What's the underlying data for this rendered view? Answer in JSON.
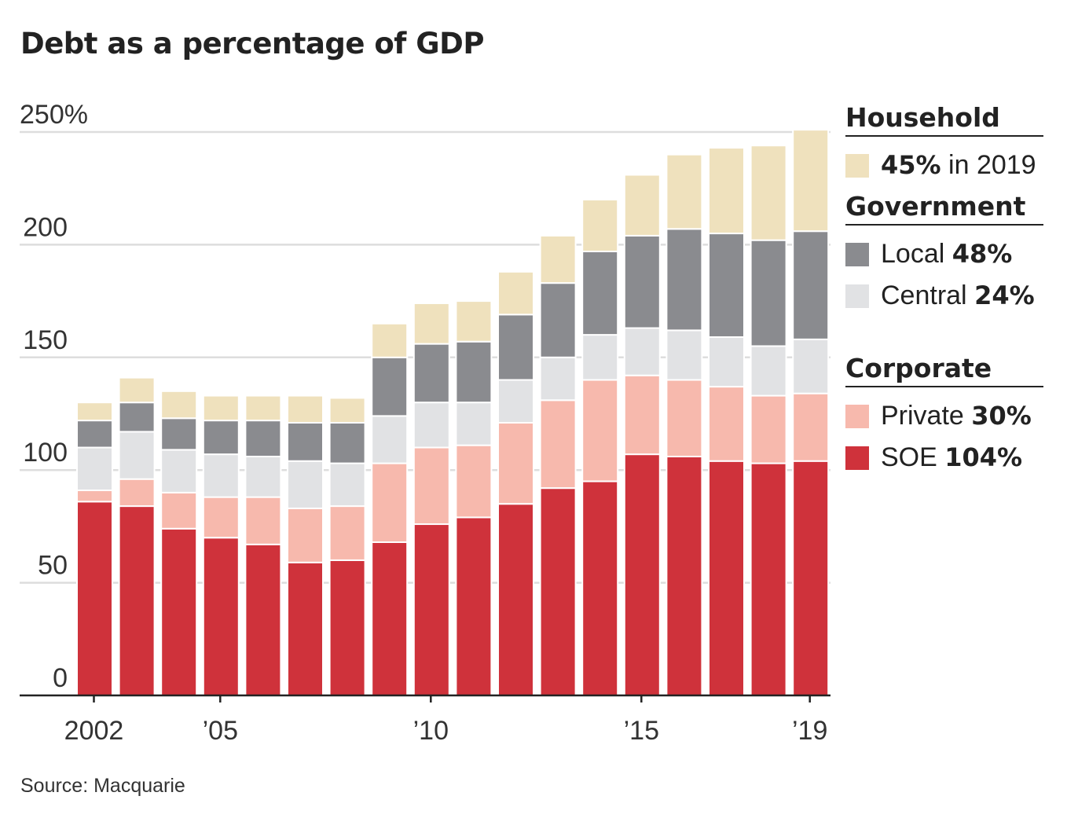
{
  "title": "Debt as a percentage of GDP",
  "source": "Source: Macquarie",
  "colors": {
    "soe": "#cf323b",
    "private": "#f7b9ad",
    "central": "#e1e2e4",
    "local": "#8a8b8f",
    "household": "#efe1bd",
    "grid": "#dddddd",
    "axis": "#222222"
  },
  "legend": {
    "groups": [
      {
        "title": "Household",
        "items": [
          {
            "key": "household",
            "label": "",
            "value": "45%",
            "suffix": " in 2019"
          }
        ]
      },
      {
        "title": "Government",
        "items": [
          {
            "key": "local",
            "label": "Local ",
            "value": "48%",
            "suffix": ""
          },
          {
            "key": "central",
            "label": "Central ",
            "value": "24%",
            "suffix": ""
          }
        ]
      },
      {
        "title": "Corporate",
        "items": [
          {
            "key": "private",
            "label": "Private ",
            "value": "30%",
            "suffix": ""
          },
          {
            "key": "soe",
            "label": "SOE ",
            "value": "104%",
            "suffix": ""
          }
        ]
      }
    ]
  },
  "chart_data": {
    "type": "bar",
    "stacked": true,
    "title": "Debt as a percentage of GDP",
    "xlabel": "",
    "ylabel": "",
    "ylim": [
      0,
      250
    ],
    "y_ticks": [
      0,
      50,
      100,
      150,
      200,
      250
    ],
    "y_tick_labels": [
      "0",
      "50",
      "100",
      "150",
      "200",
      "250%"
    ],
    "x_tick_labels": [
      {
        "year": 2002,
        "label": "2002"
      },
      {
        "year": 2005,
        "label": "’05"
      },
      {
        "year": 2010,
        "label": "’10"
      },
      {
        "year": 2015,
        "label": "’15"
      },
      {
        "year": 2019,
        "label": "’19"
      }
    ],
    "grid": true,
    "legend_position": "right",
    "categories": [
      2002,
      2003,
      2004,
      2005,
      2006,
      2007,
      2008,
      2009,
      2010,
      2011,
      2012,
      2013,
      2014,
      2015,
      2016,
      2017,
      2018,
      2019
    ],
    "series": [
      {
        "key": "soe",
        "name": "SOE",
        "group": "Corporate",
        "values": [
          86,
          84,
          74,
          70,
          67,
          59,
          60,
          68,
          76,
          79,
          85,
          92,
          95,
          107,
          106,
          104,
          103,
          104
        ]
      },
      {
        "key": "private",
        "name": "Private",
        "group": "Corporate",
        "values": [
          5,
          12,
          16,
          18,
          21,
          24,
          24,
          35,
          34,
          32,
          36,
          39,
          45,
          35,
          34,
          33,
          30,
          30
        ]
      },
      {
        "key": "central",
        "name": "Central",
        "group": "Government",
        "values": [
          19,
          21,
          19,
          19,
          18,
          21,
          19,
          21,
          20,
          19,
          19,
          19,
          20,
          21,
          22,
          22,
          22,
          24
        ]
      },
      {
        "key": "local",
        "name": "Local",
        "group": "Government",
        "values": [
          12,
          13,
          14,
          15,
          16,
          17,
          18,
          26,
          26,
          27,
          29,
          33,
          37,
          41,
          45,
          46,
          47,
          48
        ]
      },
      {
        "key": "household",
        "name": "Household",
        "group": "Household",
        "values": [
          8,
          11,
          12,
          11,
          11,
          12,
          11,
          15,
          18,
          18,
          19,
          21,
          23,
          27,
          33,
          38,
          42,
          45
        ]
      }
    ]
  }
}
